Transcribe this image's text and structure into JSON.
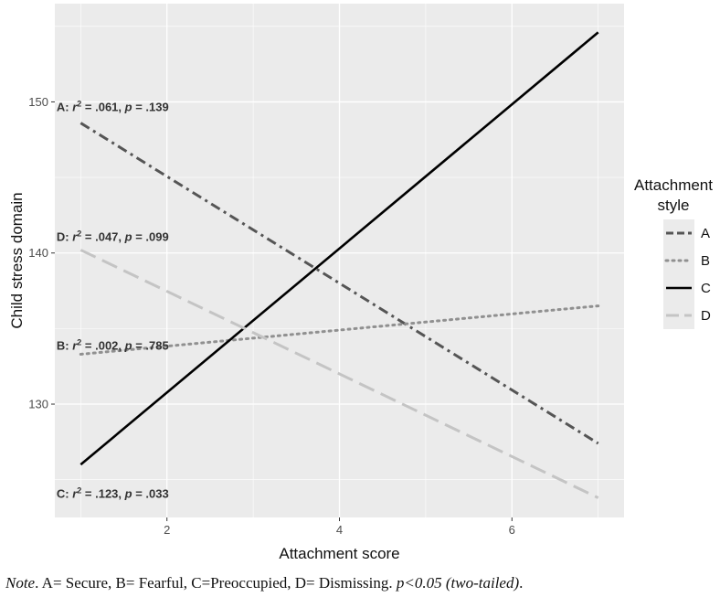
{
  "chart_data": {
    "type": "line",
    "xlabel": "Attachment score",
    "ylabel": "Child stress domain",
    "xlim": [
      0.7,
      7.3
    ],
    "ylim": [
      122.5,
      156.5
    ],
    "x_ticks": [
      2,
      4,
      6
    ],
    "y_ticks": [
      130,
      140,
      150
    ],
    "x_tick_labels": [
      "2",
      "4",
      "6"
    ],
    "y_tick_labels": [
      "130",
      "140",
      "150"
    ],
    "grid": true,
    "background": "#ebebeb",
    "legend": {
      "title_line1": "Attachment",
      "title_line2": "style",
      "position": "right"
    },
    "series": [
      {
        "name": "A",
        "x": [
          1,
          7
        ],
        "y": [
          148.6,
          127.4
        ],
        "color": "#555555",
        "linestyle": "dashdot"
      },
      {
        "name": "B",
        "x": [
          1,
          7
        ],
        "y": [
          133.3,
          136.5
        ],
        "color": "#909090",
        "linestyle": "dotted"
      },
      {
        "name": "C",
        "x": [
          1,
          7
        ],
        "y": [
          126.0,
          154.6
        ],
        "color": "#000000",
        "linestyle": "solid"
      },
      {
        "name": "D",
        "x": [
          1,
          7
        ],
        "y": [
          140.2,
          123.8
        ],
        "color": "#c4c4c4",
        "linestyle": "longdash"
      }
    ],
    "annotations": [
      {
        "id": "A",
        "prefix": "A: ",
        "r": "r",
        "sup": "2",
        "mid": " = .061, ",
        "p": "p",
        "tail": " = .139",
        "x": 0.72,
        "y": 149.4
      },
      {
        "id": "D",
        "prefix": "D: ",
        "r": "r",
        "sup": "2",
        "mid": " = .047, ",
        "p": "p",
        "tail": " = .099",
        "x": 0.72,
        "y": 140.8
      },
      {
        "id": "B",
        "prefix": "B: ",
        "r": "r",
        "sup": "2",
        "mid": " = .002, ",
        "p": "p",
        "tail": " = .785",
        "x": 0.72,
        "y": 133.6
      },
      {
        "id": "C",
        "prefix": "C: ",
        "r": "r",
        "sup": "2",
        "mid": " = .123, ",
        "p": "p",
        "tail": " = .033",
        "x": 0.72,
        "y": 123.8
      }
    ]
  },
  "note": {
    "label": "Note",
    "text": ". A= Secure, B= Fearful, C=Preoccupied, D= Dismissing. ",
    "sig": "p<0.05 (two-tailed)",
    "end": "."
  }
}
